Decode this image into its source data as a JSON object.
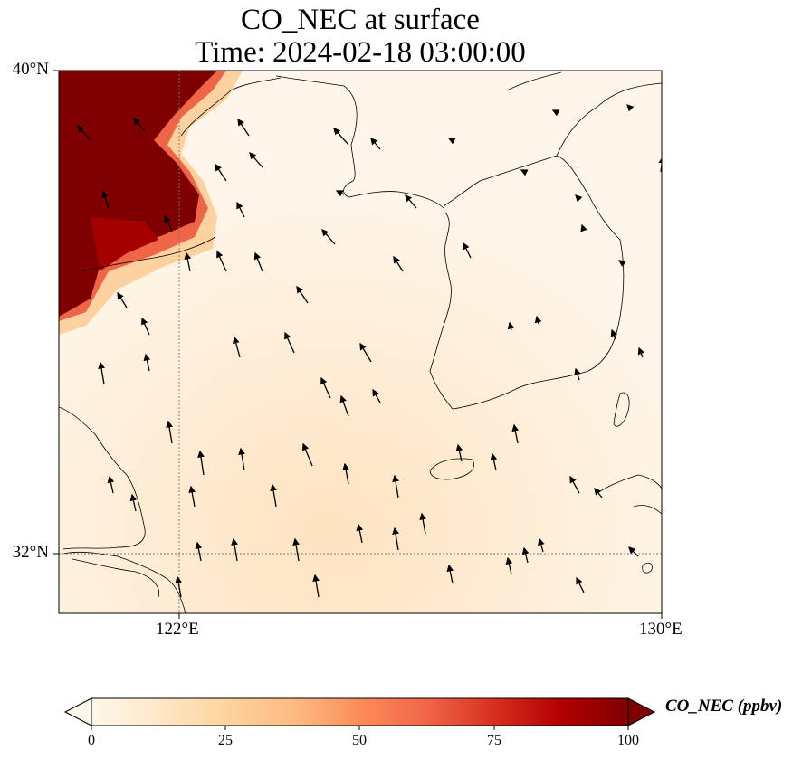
{
  "title_line1": "CO_NEC at surface",
  "title_line2": "Time: 2024-02-18 03:00:00",
  "lat_labels": [
    "40°N",
    "32°N"
  ],
  "lon_labels": [
    "122°E",
    "130°E"
  ],
  "colorbar": {
    "label": "CO_NEC (ppbv)",
    "ticks": [
      "0",
      "25",
      "50",
      "75",
      "100"
    ],
    "range": [
      0,
      100
    ],
    "colormap": "OrRd",
    "colors": [
      "#fff7ec",
      "#fee8c8",
      "#fdd49e",
      "#fdbb84",
      "#fc8d59",
      "#ef6548",
      "#d7301f",
      "#b30000",
      "#7f0000"
    ],
    "extend": "both"
  },
  "map": {
    "lon_range": [
      120,
      130
    ],
    "lat_range": [
      31,
      40
    ],
    "gridlines_dotted": true,
    "features": [
      "coastlines",
      "wind-vectors"
    ]
  }
}
